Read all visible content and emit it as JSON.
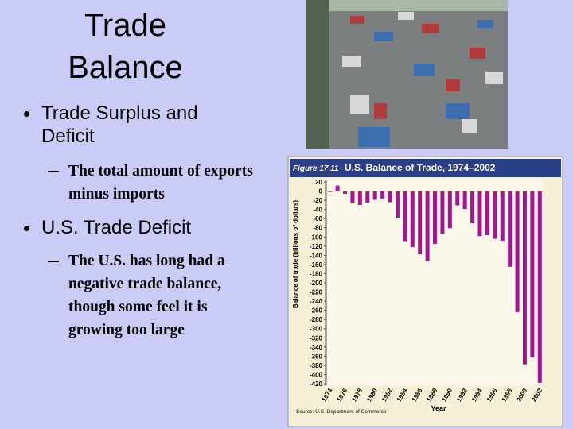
{
  "slide": {
    "title": "Trade Balance",
    "bullets": [
      {
        "text": "Trade Surplus and Deficit",
        "sub": "The total amount of exports minus imports"
      },
      {
        "text": "U.S. Trade Deficit",
        "sub": "The U.S. has long had a negative trade balance, though some feel it is growing too large"
      }
    ]
  },
  "chart_data": {
    "type": "bar",
    "figure": "Figure 17.11",
    "title": "U.S. Balance of Trade, 1974–2002",
    "y_label": "Balance of trade (billions of dollars)",
    "x_label": "Year",
    "source": "Source: U.S. Department of Commerce",
    "categories": [
      "1974",
      null,
      "1976",
      null,
      "1978",
      null,
      "1980",
      null,
      "1982",
      null,
      "1984",
      null,
      "1986",
      null,
      "1988",
      null,
      "1990",
      null,
      "1992",
      null,
      "1994",
      null,
      "1996",
      null,
      "1998",
      null,
      "2000",
      null,
      "2002"
    ],
    "values": [
      -2,
      12,
      -6,
      -27,
      -30,
      -25,
      -19,
      -16,
      -24,
      -58,
      -109,
      -122,
      -138,
      -152,
      -115,
      -93,
      -81,
      -31,
      -39,
      -70,
      -98,
      -96,
      -104,
      -108,
      -165,
      -264,
      -378,
      -363,
      -418
    ],
    "color": "#a3168e",
    "ylim": [
      -420,
      20
    ],
    "yticks": [
      20,
      0,
      -20,
      -40,
      -60,
      -80,
      -100,
      -120,
      -140,
      -160,
      -180,
      -200,
      -220,
      -240,
      -260,
      -280,
      -300,
      -320,
      -340,
      -360,
      -380,
      -400,
      -420
    ],
    "grid": false
  }
}
